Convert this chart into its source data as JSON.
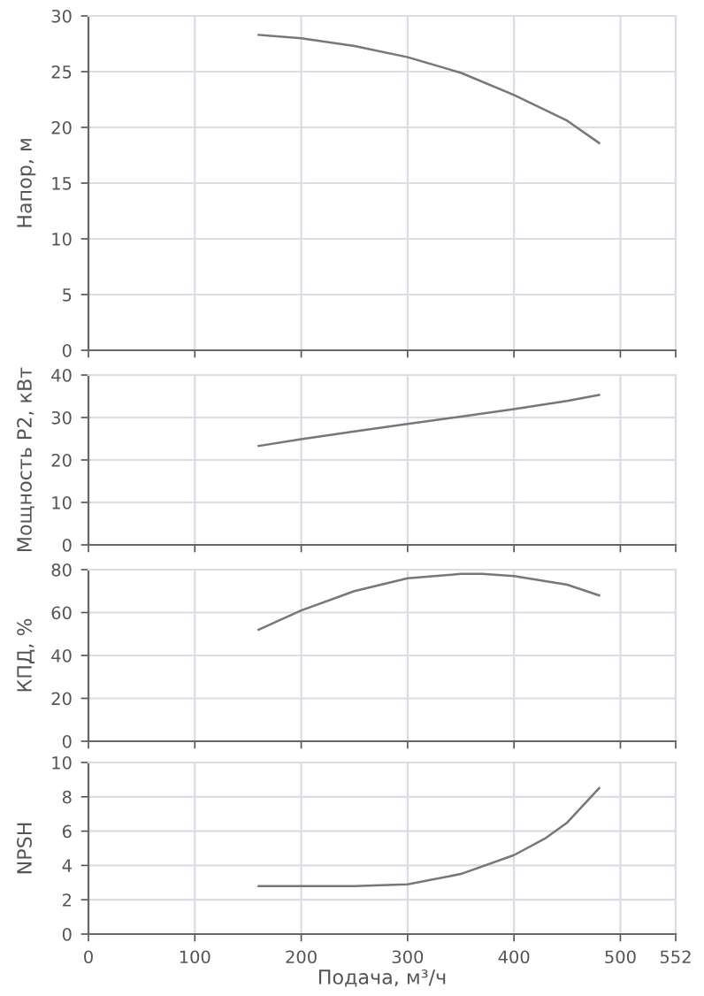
{
  "chart_data": [
    {
      "type": "line",
      "ylabel": "Напор, м",
      "x": [
        160,
        200,
        250,
        300,
        350,
        400,
        450,
        480
      ],
      "series": [
        {
          "color": "#777777",
          "values": [
            28.3,
            28.0,
            27.3,
            26.3,
            24.9,
            22.9,
            20.6,
            18.6
          ]
        }
      ],
      "xlim": [
        0,
        552
      ],
      "xticks": [
        0,
        100,
        200,
        300,
        400,
        500,
        552
      ],
      "ylim": [
        0,
        30
      ],
      "yticks": [
        0,
        5,
        10,
        15,
        20,
        25,
        30
      ],
      "grid": true,
      "tick_labels": "y"
    },
    {
      "type": "line",
      "ylabel": "Мощность P2, кВт",
      "x": [
        160,
        200,
        250,
        300,
        350,
        400,
        450,
        480
      ],
      "series": [
        {
          "color": "#777777",
          "values": [
            23.3,
            24.9,
            26.7,
            28.5,
            30.2,
            32.0,
            33.9,
            35.3
          ]
        }
      ],
      "xlim": [
        0,
        552
      ],
      "xticks": [
        0,
        100,
        200,
        300,
        400,
        500,
        552
      ],
      "ylim": [
        0,
        40
      ],
      "yticks": [
        0,
        10,
        20,
        30,
        40
      ],
      "grid": true,
      "tick_labels": "y"
    },
    {
      "type": "line",
      "ylabel": "КПД, %",
      "x": [
        160,
        200,
        250,
        300,
        350,
        370,
        400,
        450,
        480
      ],
      "series": [
        {
          "color": "#777777",
          "values": [
            52,
            61,
            70,
            76,
            78,
            78,
            77,
            73,
            68
          ]
        }
      ],
      "xlim": [
        0,
        552
      ],
      "xticks": [
        0,
        100,
        200,
        300,
        400,
        500,
        552
      ],
      "ylim": [
        0,
        80
      ],
      "yticks": [
        0,
        20,
        40,
        60,
        80
      ],
      "grid": true,
      "tick_labels": "y"
    },
    {
      "type": "line",
      "ylabel": "NPSH",
      "xlabel": "Подача, м³/ч",
      "x": [
        160,
        200,
        250,
        300,
        350,
        400,
        430,
        450,
        480
      ],
      "series": [
        {
          "color": "#777777",
          "values": [
            2.8,
            2.8,
            2.8,
            2.9,
            3.5,
            4.6,
            5.6,
            6.5,
            8.5
          ]
        }
      ],
      "xlim": [
        0,
        552
      ],
      "xticks": [
        0,
        100,
        200,
        300,
        400,
        500,
        552
      ],
      "ylim": [
        0,
        10
      ],
      "yticks": [
        0,
        2,
        4,
        6,
        8,
        10
      ],
      "grid": true
    }
  ]
}
